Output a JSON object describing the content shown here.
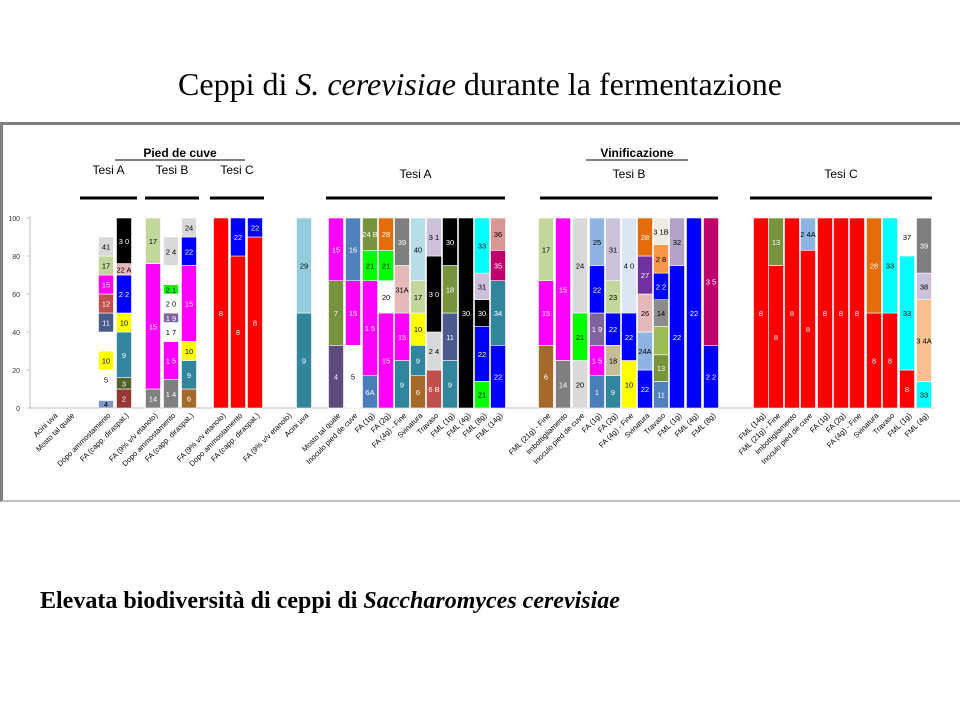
{
  "slide": {
    "title_prefix": "Ceppi di",
    "title_species": "S. cerevisiae",
    "title_suffix": "durante la fermentazione",
    "caption_prefix": "Elevata biodiversità di ceppi di",
    "caption_species": "Saccharomyces cerevisiae"
  },
  "chart_data": {
    "type": "bar",
    "stacked": true,
    "ylim": [
      0,
      100
    ],
    "yticks": [
      0,
      20,
      40,
      60,
      80,
      100
    ],
    "legend": "none",
    "grid": false,
    "group_headers": [
      {
        "label": "Pied de cuve",
        "sub": [
          "Tesi A",
          "Tesi B",
          "Tesi C"
        ]
      },
      {
        "label": "Vinificazione",
        "sub": [
          "Tesi A",
          "Tesi B",
          "Tesi C"
        ]
      }
    ],
    "categories": [
      "Acini uva",
      "Mosto tal quale",
      "Dopo ammostamento",
      "FA (capp. diraspat.)",
      "FA (9% v/v etanolo)",
      "Dopo ammostamento",
      "FA (capp. diraspat.)",
      "FA (9% v/v etanolo)",
      "Dopo ammostamento",
      "FA (capp. diraspat.)",
      "FA (9% v/v etanolo)",
      "Acini uva",
      "Mosto tal quale",
      "Inoculo pied de cuve",
      "FA (1g)",
      "FA (2g)",
      "FA (4g) - Fine",
      "Svinatura",
      "Travaso",
      "FML (1g)",
      "FML (4g)",
      "FML (8g)",
      "FML (14g)",
      "FML (21g) - Fine",
      "Imbottigliamento",
      "Inoculo pied de cuve",
      "FA (1g)",
      "FA (2g)",
      "FA (4g) - Fine",
      "Svinatura",
      "Travaso",
      "FML (1g)",
      "FML (4g)",
      "FML (8g)",
      "FML (14g)",
      "FML (21g) - Fine",
      "Imbottigliamento",
      "Inoculo pied de cuve",
      "FA (1g)",
      "FA (2g)",
      "FA (4g) - Fine",
      "Svinatura",
      "Travaso",
      "FML (1g)",
      "FML (4g)",
      "FML (8g)",
      "FML (14g)",
      "FML (21g) - Fine",
      "Imbottigliamento"
    ],
    "bars": [
      {
        "x": 53,
        "segments": []
      },
      {
        "x": 70,
        "segments": []
      },
      {
        "x": 106,
        "segments": [
          {
            "v": 4,
            "c": "#8096c8",
            "t": "4"
          },
          {
            "v": 6,
            "c": "#ffffff",
            "t": ""
          },
          {
            "v": 10,
            "c": "#ffffff",
            "t": "5"
          },
          {
            "v": 10,
            "c": "#ffff00",
            "t": "10"
          },
          {
            "v": 10,
            "c": "#ffffff",
            "t": ""
          },
          {
            "v": 10,
            "c": "#4a5a8c",
            "t": "11"
          },
          {
            "v": 10,
            "c": "#c0504d",
            "t": "12"
          },
          {
            "v": 10,
            "c": "#ff00ff",
            "t": "15"
          },
          {
            "v": 10,
            "c": "#c3d69b",
            "t": "17"
          },
          {
            "v": 10,
            "c": "#d9d9d9",
            "t": "41"
          }
        ]
      },
      {
        "x": 124,
        "segments": [
          {
            "v": 10,
            "c": "#953735",
            "t": "2"
          },
          {
            "v": 6,
            "c": "#4f6228",
            "t": "3"
          },
          {
            "v": 24,
            "c": "#31859c",
            "t": "9"
          },
          {
            "v": 10,
            "c": "#ffff00",
            "t": "10"
          },
          {
            "v": 20,
            "c": "#0000ff",
            "t": "2 2"
          },
          {
            "v": 6,
            "c": "#e6b9b8",
            "t": "22 A"
          },
          {
            "v": 24,
            "c": "#000000",
            "t": "3 0"
          }
        ]
      },
      {
        "x": 153,
        "segments": [
          {
            "v": 10,
            "c": "#7f7f7f",
            "t": "14"
          },
          {
            "v": 66,
            "c": "#ff00ff",
            "t": "15"
          },
          {
            "v": 24,
            "c": "#c3d69b",
            "t": "17"
          }
        ]
      },
      {
        "x": 171,
        "segments": [
          {
            "v": 15,
            "c": "#7f7f7f",
            "t": "1 4"
          },
          {
            "v": 20,
            "c": "#ff00ff",
            "t": "1 5"
          },
          {
            "v": 10,
            "c": "#ffffff",
            "t": "1 7"
          },
          {
            "v": 5,
            "c": "#8064a2",
            "t": "1 9"
          },
          {
            "v": 10,
            "c": "#ffffff",
            "t": "2 0"
          },
          {
            "v": 5,
            "c": "#00ff00",
            "t": "2 1"
          },
          {
            "v": 10,
            "c": "#ffffff",
            "t": ""
          },
          {
            "v": 15,
            "c": "#d9d9d9",
            "t": "2 4"
          }
        ]
      },
      {
        "x": 189,
        "segments": [
          {
            "v": 10,
            "c": "#a5692a",
            "t": "6"
          },
          {
            "v": 15,
            "c": "#31859c",
            "t": "9"
          },
          {
            "v": 10,
            "c": "#ffff00",
            "t": "10"
          },
          {
            "v": 40,
            "c": "#ff00ff",
            "t": "15"
          },
          {
            "v": 15,
            "c": "#0000ff",
            "t": "22"
          },
          {
            "v": 10,
            "c": "#d9d9d9",
            "t": "24"
          }
        ]
      },
      {
        "x": 221,
        "segments": [
          {
            "v": 100,
            "c": "#ff0000",
            "t": "8"
          }
        ]
      },
      {
        "x": 238,
        "segments": [
          {
            "v": 80,
            "c": "#ff0000",
            "t": "8"
          },
          {
            "v": 20,
            "c": "#0000ff",
            "t": "22"
          }
        ]
      },
      {
        "x": 255,
        "segments": [
          {
            "v": 90,
            "c": "#ff0000",
            "t": "8"
          },
          {
            "v": 10,
            "c": "#0000ff",
            "t": "22"
          }
        ]
      },
      {
        "x": 287,
        "segments": []
      },
      {
        "x": 304,
        "segments": [
          {
            "v": 50,
            "c": "#31859c",
            "t": "9"
          },
          {
            "v": 50,
            "c": "#93cddd",
            "t": "29"
          }
        ]
      },
      {
        "x": 336,
        "segments": [
          {
            "v": 33,
            "c": "#604a7b",
            "t": "4"
          },
          {
            "v": 34,
            "c": "#77933c",
            "t": "7"
          },
          {
            "v": 33,
            "c": "#ff00ff",
            "t": "15"
          }
        ]
      },
      {
        "x": 353,
        "segments": [
          {
            "v": 33,
            "c": "#ffffff",
            "t": "5"
          },
          {
            "v": 34,
            "c": "#ff00ff",
            "t": "15"
          },
          {
            "v": 33,
            "c": "#4f81bd",
            "t": "16"
          }
        ]
      },
      {
        "x": 370,
        "segments": [
          {
            "v": 17,
            "c": "#4a7ebb",
            "t": "6A"
          },
          {
            "v": 50,
            "c": "#ff00ff",
            "t": "1 5"
          },
          {
            "v": 16,
            "c": "#00ff00",
            "t": "21"
          },
          {
            "v": 17,
            "c": "#77933c",
            "t": "24 B"
          }
        ]
      },
      {
        "x": 386,
        "segments": [
          {
            "v": 50,
            "c": "#ff00ff",
            "t": "15"
          },
          {
            "v": 17,
            "c": "#ffffff",
            "t": "20"
          },
          {
            "v": 16,
            "c": "#00ff00",
            "t": "21"
          },
          {
            "v": 17,
            "c": "#e46c0a",
            "t": "28"
          }
        ]
      },
      {
        "x": 402,
        "segments": [
          {
            "v": 25,
            "c": "#31859c",
            "t": "9"
          },
          {
            "v": 25,
            "c": "#ff00ff",
            "t": "15"
          },
          {
            "v": 25,
            "c": "#e6b9b8",
            "t": "31A"
          },
          {
            "v": 25,
            "c": "#7f7f7f",
            "t": "39"
          }
        ]
      },
      {
        "x": 418,
        "segments": [
          {
            "v": 17,
            "c": "#a5692a",
            "t": "6"
          },
          {
            "v": 16,
            "c": "#31859c",
            "t": "9"
          },
          {
            "v": 17,
            "c": "#ffff00",
            "t": "10"
          },
          {
            "v": 17,
            "c": "#c3d69b",
            "t": "17"
          },
          {
            "v": 33,
            "c": "#b7dee8",
            "t": "40"
          }
        ]
      },
      {
        "x": 434,
        "segments": [
          {
            "v": 20,
            "c": "#c0504d",
            "t": "6 B"
          },
          {
            "v": 20,
            "c": "#d9d9d9",
            "t": "2 4"
          },
          {
            "v": 40,
            "c": "#000000",
            "t": "3 0"
          },
          {
            "v": 20,
            "c": "#ccc1da",
            "t": "3 1"
          }
        ]
      },
      {
        "x": 450,
        "segments": [
          {
            "v": 25,
            "c": "#31859c",
            "t": "9"
          },
          {
            "v": 25,
            "c": "#4a5a8c",
            "t": "11"
          },
          {
            "v": 25,
            "c": "#77933c",
            "t": "18"
          },
          {
            "v": 25,
            "c": "#000000",
            "t": "30"
          }
        ]
      },
      {
        "x": 466,
        "segments": [
          {
            "v": 100,
            "c": "#000000",
            "t": "30"
          }
        ]
      },
      {
        "x": 482,
        "segments": [
          {
            "v": 14,
            "c": "#00ff00",
            "t": "21"
          },
          {
            "v": 29,
            "c": "#0000ff",
            "t": "22"
          },
          {
            "v": 14,
            "c": "#000000",
            "t": "30"
          },
          {
            "v": 14,
            "c": "#ccc1da",
            "t": "31"
          },
          {
            "v": 29,
            "c": "#00ffff",
            "t": "33"
          }
        ]
      },
      {
        "x": 498,
        "segments": [
          {
            "v": 33,
            "c": "#0000ff",
            "t": "22"
          },
          {
            "v": 34,
            "c": "#31859c",
            "t": "34"
          },
          {
            "v": 16,
            "c": "#c0006c",
            "t": "35"
          },
          {
            "v": 17,
            "c": "#d99694",
            "t": "36"
          }
        ]
      },
      {
        "x": 546,
        "segments": [
          {
            "v": 33,
            "c": "#a5692a",
            "t": "6"
          },
          {
            "v": 34,
            "c": "#ff00ff",
            "t": "15"
          },
          {
            "v": 33,
            "c": "#c3d69b",
            "t": "17"
          }
        ]
      },
      {
        "x": 563,
        "segments": [
          {
            "v": 25,
            "c": "#7f7f7f",
            "t": "14"
          },
          {
            "v": 75,
            "c": "#ff00ff",
            "t": "15"
          }
        ]
      },
      {
        "x": 580,
        "segments": [
          {
            "v": 25,
            "c": "#d9d9d9",
            "t": "20"
          },
          {
            "v": 25,
            "c": "#00ff00",
            "t": "21"
          },
          {
            "v": 50,
            "c": "#d9d9d9",
            "t": "24"
          }
        ]
      },
      {
        "x": 597,
        "segments": [
          {
            "v": 17,
            "c": "#4a7ebb",
            "t": "1"
          },
          {
            "v": 16,
            "c": "#ff00ff",
            "t": "1 5"
          },
          {
            "v": 17,
            "c": "#8064a2",
            "t": "1 9"
          },
          {
            "v": 25,
            "c": "#0000ff",
            "t": "22"
          },
          {
            "v": 25,
            "c": "#8eb4e3",
            "t": "25"
          }
        ]
      },
      {
        "x": 613,
        "segments": [
          {
            "v": 17,
            "c": "#31859c",
            "t": "9"
          },
          {
            "v": 16,
            "c": "#c4bd97",
            "t": "18"
          },
          {
            "v": 17,
            "c": "#0000ff",
            "t": "22"
          },
          {
            "v": 17,
            "c": "#c3d69b",
            "t": "23"
          },
          {
            "v": 33,
            "c": "#ccc1da",
            "t": "31"
          }
        ]
      },
      {
        "x": 629,
        "segments": [
          {
            "v": 25,
            "c": "#ffff00",
            "t": "10"
          },
          {
            "v": 25,
            "c": "#0000ff",
            "t": "22"
          },
          {
            "v": 50,
            "c": "#dce6f2",
            "t": "4 0"
          }
        ]
      },
      {
        "x": 645,
        "segments": [
          {
            "v": 20,
            "c": "#0000ff",
            "t": "22"
          },
          {
            "v": 20,
            "c": "#8eb4e3",
            "t": "24A"
          },
          {
            "v": 20,
            "c": "#e6b9b8",
            "t": "26"
          },
          {
            "v": 20,
            "c": "#7030a0",
            "t": "27"
          },
          {
            "v": 20,
            "c": "#e46c0a",
            "t": "28"
          }
        ]
      },
      {
        "x": 661,
        "segments": [
          {
            "v": 14,
            "c": "#4f81bd",
            "t": "11"
          },
          {
            "v": 14,
            "c": "#77933c",
            "t": "13"
          },
          {
            "v": 15,
            "c": "#9bbb59",
            "t": ""
          },
          {
            "v": 14,
            "c": "#8c8c8c",
            "t": "14"
          },
          {
            "v": 14,
            "c": "#0000ff",
            "t": "2 2"
          },
          {
            "v": 15,
            "c": "#f79646",
            "t": "2 8"
          },
          {
            "v": 14,
            "c": "#eeece1",
            "t": "3 1B"
          }
        ]
      },
      {
        "x": 677,
        "segments": [
          {
            "v": 75,
            "c": "#0000ff",
            "t": "22"
          },
          {
            "v": 25,
            "c": "#b3a2c7",
            "t": "32"
          }
        ]
      },
      {
        "x": 694,
        "segments": [
          {
            "v": 100,
            "c": "#0000ff",
            "t": "22"
          }
        ]
      },
      {
        "x": 711,
        "segments": [
          {
            "v": 33,
            "c": "#0000ff",
            "t": "2 2"
          },
          {
            "v": 67,
            "c": "#c0006c",
            "t": "3 5"
          }
        ]
      },
      {
        "x": 761,
        "segments": [
          {
            "v": 100,
            "c": "#ff0000",
            "t": "8"
          }
        ]
      },
      {
        "x": 776,
        "segments": [
          {
            "v": 75,
            "c": "#ff0000",
            "t": "8"
          },
          {
            "v": 25,
            "c": "#77933c",
            "t": "13"
          }
        ]
      },
      {
        "x": 792,
        "segments": [
          {
            "v": 100,
            "c": "#ff0000",
            "t": "8"
          }
        ]
      },
      {
        "x": 808,
        "segments": [
          {
            "v": 83,
            "c": "#ff0000",
            "t": "8"
          },
          {
            "v": 17,
            "c": "#8eb4e3",
            "t": "2 4A"
          }
        ]
      },
      {
        "x": 825,
        "segments": [
          {
            "v": 100,
            "c": "#ff0000",
            "t": "8"
          }
        ]
      },
      {
        "x": 841,
        "segments": [
          {
            "v": 100,
            "c": "#ff0000",
            "t": "8"
          }
        ]
      },
      {
        "x": 857,
        "segments": [
          {
            "v": 100,
            "c": "#ff0000",
            "t": "8"
          }
        ]
      },
      {
        "x": 874,
        "segments": [
          {
            "v": 50,
            "c": "#ff0000",
            "t": "8"
          },
          {
            "v": 50,
            "c": "#e46c0a",
            "t": "28"
          }
        ]
      },
      {
        "x": 890,
        "segments": [
          {
            "v": 50,
            "c": "#ff0000",
            "t": "8"
          },
          {
            "v": 50,
            "c": "#00ffff",
            "t": "33"
          }
        ]
      },
      {
        "x": 907,
        "segments": [
          {
            "v": 20,
            "c": "#ff0000",
            "t": "8"
          },
          {
            "v": 60,
            "c": "#00ffff",
            "t": "33"
          },
          {
            "v": 20,
            "c": "#ffffff",
            "t": "37"
          }
        ]
      },
      {
        "x": 924,
        "segments": [
          {
            "v": 14,
            "c": "#00ffff",
            "t": "33"
          },
          {
            "v": 43,
            "c": "#fac090",
            "t": "3 4A"
          },
          {
            "v": 14,
            "c": "#ccc1da",
            "t": "38"
          },
          {
            "v": 29,
            "c": "#7f7f7f",
            "t": "39"
          }
        ]
      }
    ],
    "group_brackets": [
      {
        "x1": 80,
        "x2": 137,
        "label": "Tesi A"
      },
      {
        "x1": 145,
        "x2": 199,
        "label": "Tesi B"
      },
      {
        "x1": 210,
        "x2": 264,
        "label": "Tesi C"
      },
      {
        "x1": 326,
        "x2": 505,
        "label": "Tesi A"
      },
      {
        "x1": 540,
        "x2": 718,
        "label": "Tesi B"
      },
      {
        "x1": 750,
        "x2": 932,
        "label": "Tesi C"
      }
    ]
  }
}
